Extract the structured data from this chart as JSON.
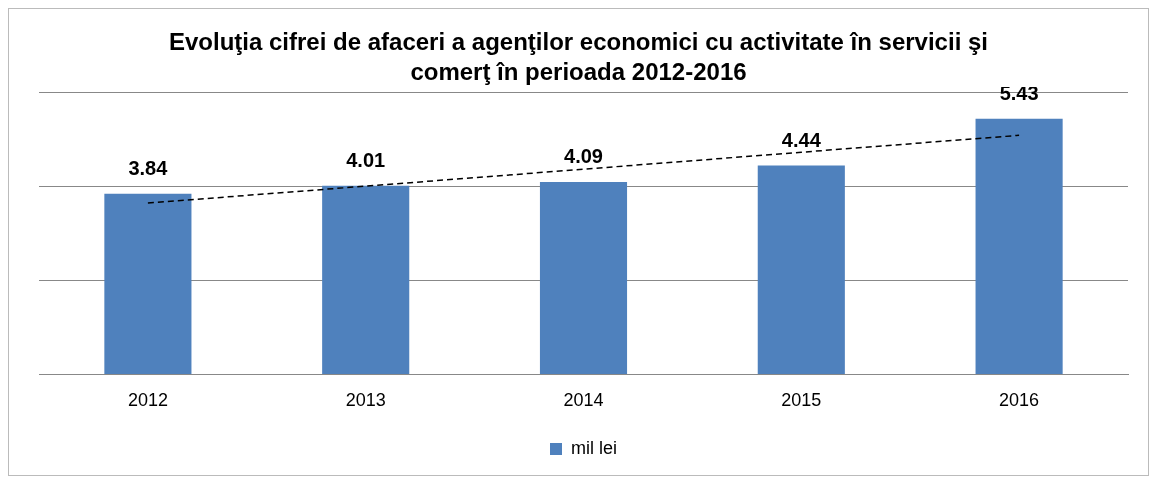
{
  "chart_data": {
    "type": "bar",
    "title": "Evoluţia cifrei de afaceri a agenţilor economici cu activitate în servicii şi comerţ în perioada 2012-2016",
    "categories": [
      "2012",
      "2013",
      "2014",
      "2015",
      "2016"
    ],
    "series": [
      {
        "name": "mil lei",
        "color": "#4f81bd",
        "values": [
          3.84,
          4.01,
          4.09,
          4.44,
          5.43
        ],
        "value_labels": [
          "3.84",
          "4.01",
          "4.09",
          "4.44",
          "5.43"
        ]
      },
      {
        "type": "line",
        "color": "#000000",
        "line_style": "dashed",
        "marker": "none",
        "values": [
          3.64,
          4.0,
          4.36,
          4.72,
          5.08
        ]
      }
    ],
    "ylim": [
      0,
      6
    ],
    "yticks": [
      {
        "value": 0,
        "label": null
      },
      {
        "value": 2,
        "label": null
      },
      {
        "value": 4,
        "label": null
      },
      {
        "value": 6,
        "label": null
      }
    ],
    "tick_labels": "x",
    "grid": "y",
    "legend": "bottom"
  }
}
